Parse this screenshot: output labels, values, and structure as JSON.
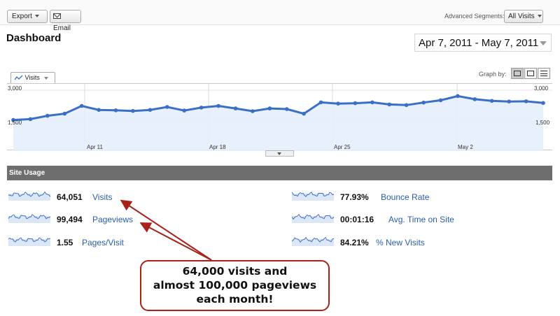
{
  "toolbar": {
    "export_label": "Export",
    "email_label": "Email",
    "segments_label": "Advanced Segments:",
    "segments_value": "All Visits"
  },
  "page": {
    "title": "Dashboard",
    "date_range": "Apr 7, 2011 - May 7, 2011"
  },
  "graph": {
    "metric_tab": "Visits",
    "graph_by_label": "Graph by:",
    "graph_by_options": [
      "day",
      "week",
      "month"
    ]
  },
  "chart_data": {
    "type": "area",
    "xlabel": "",
    "ylabel": "",
    "ylim": [
      0,
      3000
    ],
    "y_ticks_left": [
      "3,000",
      "1,500"
    ],
    "y_ticks_right": [
      "3,000",
      "1,500"
    ],
    "x_tick_labels": [
      "Apr 11",
      "Apr 18",
      "Apr 25",
      "May 2"
    ],
    "series": [
      {
        "values": [
          1580,
          1620,
          1780,
          1880,
          2250,
          2060,
          2040,
          2010,
          2060,
          2200,
          2030,
          2170,
          2250,
          2130,
          2000,
          2130,
          2100,
          1880,
          2420,
          2360,
          2380,
          2420,
          2320,
          2290,
          2410,
          2520,
          2720,
          2570,
          2490,
          2460,
          2470,
          2390
        ]
      }
    ],
    "color": "#3b6fc7",
    "fill": "#e6f0fb",
    "grid": true
  },
  "site_usage": {
    "header": "Site Usage",
    "stats": [
      {
        "value": "64,051",
        "label": "Visits"
      },
      {
        "value": "99,494",
        "label": "Pageviews"
      },
      {
        "value": "1.55",
        "label": "Pages/Visit"
      },
      {
        "value": "77.93%",
        "label": "Bounce Rate"
      },
      {
        "value": "00:01:16",
        "label": "Avg. Time on Site"
      },
      {
        "value": "84.21%",
        "label": "% New Visits"
      }
    ]
  },
  "callout": {
    "line1": "64,000 visits and",
    "line2": "almost 100,000 pageviews",
    "line3": "each month!",
    "border_color": "#a8221c"
  }
}
